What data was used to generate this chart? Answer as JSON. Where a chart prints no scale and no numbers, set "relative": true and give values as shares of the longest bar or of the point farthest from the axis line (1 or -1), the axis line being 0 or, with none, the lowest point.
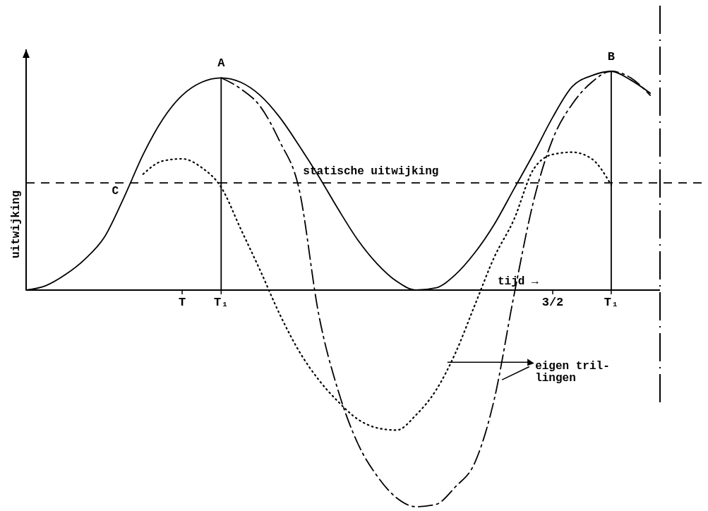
{
  "chart_data": {
    "type": "line",
    "relative": true,
    "xlabel": "tijd →",
    "ylabel": "uitwijking",
    "categories": [
      null,
      null,
      null,
      null,
      null,
      null,
      null,
      null,
      "T",
      null,
      "T₁",
      null,
      null,
      null,
      null,
      null,
      null,
      null,
      null,
      null,
      null,
      null,
      null,
      null,
      null,
      null,
      null,
      "3/2",
      null,
      null,
      "T₁",
      null,
      null
    ],
    "series": [
      {
        "color": "#000000",
        "line_style": "solid",
        "values": [
          0,
          0.02,
          0.07,
          0.14,
          0.24,
          0.42,
          0.62,
          0.78,
          0.89,
          0.95,
          0.97,
          0.95,
          0.89,
          0.79,
          0.66,
          0.52,
          0.37,
          0.23,
          0.12,
          0.04,
          0,
          0.01,
          0.07,
          0.17,
          0.3,
          0.46,
          0.62,
          0.79,
          0.93,
          0.98,
          1.0,
          0.96,
          0.9
        ]
      },
      {
        "color": "#000000",
        "line_style": "dotted",
        "values": [
          null,
          null,
          null,
          null,
          null,
          null,
          0.53,
          0.59,
          0.6,
          0.56,
          0.47,
          0.28,
          0.09,
          -0.11,
          -0.28,
          -0.41,
          -0.51,
          -0.59,
          -0.63,
          -0.64,
          -0.57,
          -0.46,
          -0.29,
          -0.07,
          0.15,
          0.32,
          0.55,
          0.62,
          0.63,
          0.6,
          0.48,
          null,
          null
        ]
      },
      {
        "color": "#000000",
        "line_style": "dashed",
        "values": [
          null,
          null,
          null,
          null,
          null,
          null,
          null,
          null,
          null,
          null,
          0.97,
          0.92,
          0.84,
          0.68,
          0.46,
          -0.11,
          -0.46,
          -0.7,
          -0.85,
          -0.95,
          -0.99,
          -0.98,
          -0.9,
          -0.79,
          -0.5,
          -0.03,
          0.4,
          0.69,
          0.85,
          0.95,
          1.0,
          0.97,
          0.89
        ]
      }
    ],
    "ref_lines": [
      {
        "axis": "y",
        "value": 0.49,
        "label": "statische uitwijking",
        "line_style": "dashed",
        "color": "#000000"
      }
    ],
    "annotations": [
      {
        "text": "A",
        "x": "T₁",
        "y": 0.97
      },
      "B",
      "C",
      "eigen tril-\nlingen"
    ]
  }
}
